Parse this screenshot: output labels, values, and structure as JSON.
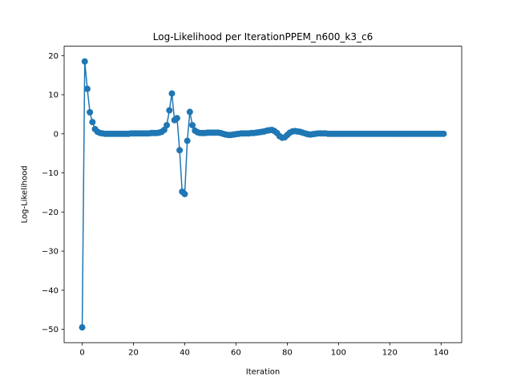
{
  "chart_data": {
    "type": "line",
    "title": "Log-Likelihood per IterationPPEM_n600_k3_c6",
    "xlabel": "Iteration",
    "ylabel": "Log-Likelihood",
    "xlim": [
      -7.05,
      148.05
    ],
    "ylim": [
      -53.4,
      22.4
    ],
    "x_ticks": [
      0,
      20,
      40,
      60,
      80,
      100,
      120,
      140
    ],
    "x_tick_labels": [
      "0",
      "20",
      "40",
      "60",
      "80",
      "100",
      "120",
      "140"
    ],
    "y_ticks": [
      -50,
      -40,
      -30,
      -20,
      -10,
      0,
      10,
      20
    ],
    "y_tick_labels": [
      "−50",
      "−40",
      "−30",
      "−20",
      "−10",
      "0",
      "10",
      "20"
    ],
    "grid": false,
    "legend": "none",
    "marker": "circle",
    "color": "#1f77b4",
    "series": [
      {
        "x": [
          0,
          1,
          2,
          3,
          4,
          5,
          6,
          7,
          8,
          9,
          10,
          11,
          12,
          13,
          14,
          15,
          16,
          17,
          18,
          19,
          20,
          21,
          22,
          23,
          24,
          25,
          26,
          27,
          28,
          29,
          30,
          31,
          32,
          33,
          34,
          35,
          36,
          37,
          38,
          39,
          40,
          41,
          42,
          43,
          44,
          45,
          46,
          47,
          48,
          49,
          50,
          51,
          52,
          53,
          54,
          55,
          56,
          57,
          58,
          59,
          60,
          61,
          62,
          63,
          64,
          65,
          66,
          67,
          68,
          69,
          70,
          71,
          72,
          73,
          74,
          75,
          76,
          77,
          78,
          79,
          80,
          81,
          82,
          83,
          84,
          85,
          86,
          87,
          88,
          89,
          90,
          91,
          92,
          93,
          94,
          95,
          96,
          97,
          98,
          99,
          100,
          101,
          102,
          103,
          104,
          105,
          106,
          107,
          108,
          109,
          110,
          111,
          112,
          113,
          114,
          115,
          116,
          117,
          118,
          119,
          120,
          121,
          122,
          123,
          124,
          125,
          126,
          127,
          128,
          129,
          130,
          131,
          132,
          133,
          134,
          135,
          136,
          137,
          138,
          139,
          140,
          141
        ],
        "y": [
          -49.5,
          18.5,
          11.5,
          5.5,
          3.0,
          1.2,
          0.5,
          0.2,
          0.1,
          0.0,
          0.0,
          0.0,
          0.0,
          0.0,
          0.0,
          0.0,
          0.0,
          0.0,
          0.0,
          0.1,
          0.1,
          0.1,
          0.1,
          0.1,
          0.1,
          0.1,
          0.1,
          0.2,
          0.2,
          0.2,
          0.3,
          0.5,
          1.0,
          2.2,
          6.0,
          10.3,
          3.5,
          4.0,
          -4.2,
          -14.8,
          -15.4,
          -1.8,
          5.6,
          2.2,
          0.8,
          0.4,
          0.2,
          0.2,
          0.2,
          0.3,
          0.3,
          0.3,
          0.3,
          0.3,
          0.2,
          0.0,
          -0.2,
          -0.3,
          -0.3,
          -0.2,
          -0.1,
          0.0,
          0.1,
          0.1,
          0.1,
          0.1,
          0.2,
          0.2,
          0.3,
          0.4,
          0.5,
          0.6,
          0.8,
          0.9,
          1.0,
          0.7,
          0.2,
          -0.6,
          -1.0,
          -0.9,
          -0.3,
          0.3,
          0.6,
          0.7,
          0.6,
          0.5,
          0.3,
          0.1,
          -0.1,
          -0.2,
          -0.1,
          0.0,
          0.1,
          0.1,
          0.1,
          0.1,
          0.0,
          0.0,
          0.0,
          0.0,
          0.0,
          0.0,
          0.0,
          0.0,
          0.0,
          0.0,
          0.0,
          0.0,
          0.0,
          0.0,
          0.0,
          0.0,
          0.0,
          0.0,
          0.0,
          0.0,
          0.0,
          0.0,
          0.0,
          0.0,
          0.0,
          0.0,
          0.0,
          0.0,
          0.0,
          0.0,
          0.0,
          0.0,
          0.0,
          0.0,
          0.0,
          0.0,
          0.0,
          0.0,
          0.0,
          0.0,
          0.0,
          0.0,
          0.0,
          0.0,
          0.0,
          0.0
        ]
      }
    ]
  }
}
